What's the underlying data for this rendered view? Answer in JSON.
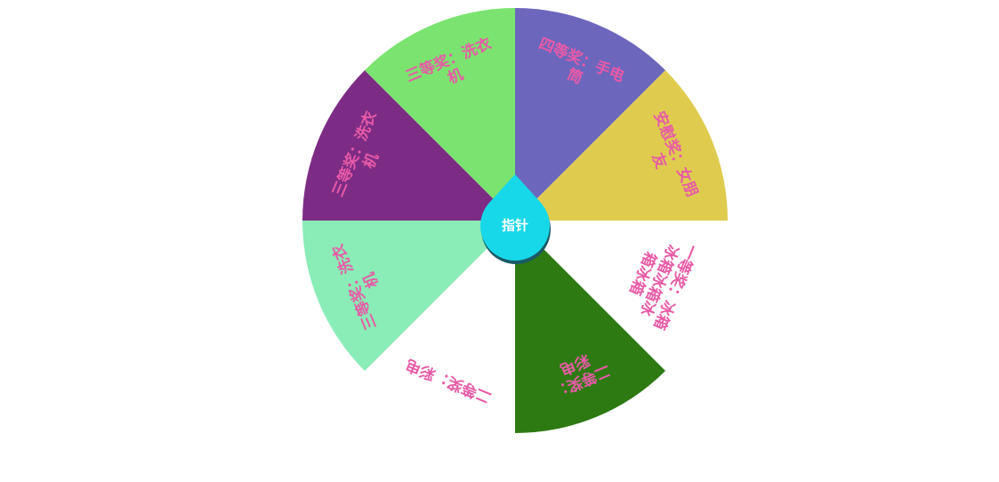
{
  "wheel": {
    "label_color": "#e85aa7",
    "pointer_color": "#17d8e8",
    "pointer_shadow": "#1a5a66",
    "prizes": [
      {
        "label_lines": [
          "四等奖：手电",
          "筒"
        ],
        "color": "#6c66bd"
      },
      {
        "label_lines": [
          "安慰奖：女朋",
          "友"
        ],
        "color": "#dfcc4f"
      },
      {
        "label_lines": [
          "一等奖：冰箱",
          "冰箱冰箱冰",
          "箱冰箱"
        ],
        "color": "#ffffff"
      },
      {
        "label_lines": [
          "二等奖：",
          "彩电"
        ],
        "color": "#2d7a13"
      },
      {
        "label_lines": [
          "二等奖：彩电"
        ],
        "color": "#ffffff"
      },
      {
        "label_lines": [
          "三等奖：洗衣",
          "机"
        ],
        "color": "#8aecb6"
      },
      {
        "label_lines": [
          "三等奖：洗衣",
          "机"
        ],
        "color": "#7d2c85"
      },
      {
        "label_lines": [
          "三等奖：洗衣",
          "机"
        ],
        "color": "#7be36f"
      }
    ]
  },
  "pointer": {
    "label": "指针"
  }
}
